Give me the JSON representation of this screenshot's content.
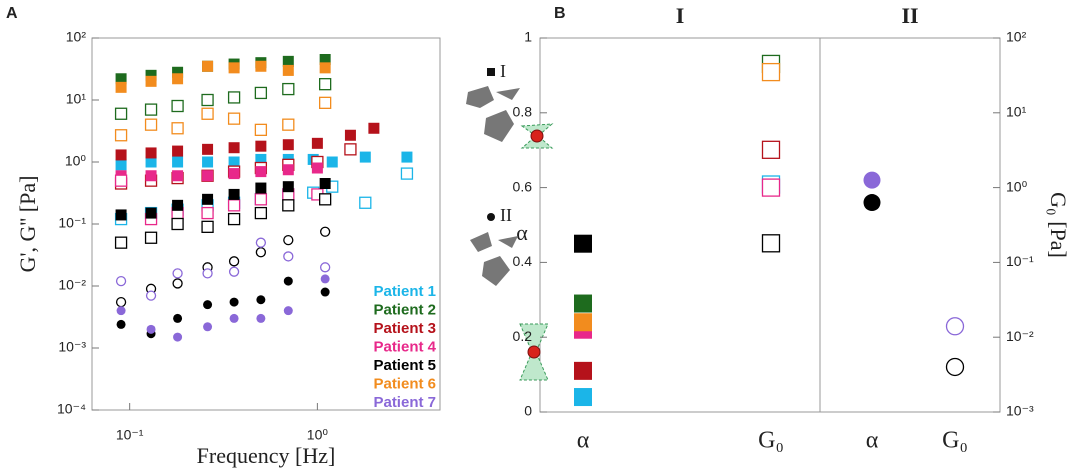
{
  "chart_data": [
    {
      "type": "scatter",
      "panel": "A",
      "xlabel": "Frequency [Hz]",
      "ylabel": "G', G'' [Pa]",
      "xlog": true,
      "ylog": true,
      "xlim": [
        0.063,
        4.5
      ],
      "ylim": [
        0.0001,
        100
      ],
      "xticks": [
        {
          "value": 0.1,
          "label": "10⁻¹"
        },
        {
          "value": 1,
          "label": "10⁰"
        }
      ],
      "yticks": [
        {
          "value": 0.0001,
          "label": "10⁻⁴"
        },
        {
          "value": 0.001,
          "label": "10⁻³"
        },
        {
          "value": 0.01,
          "label": "10⁻²"
        },
        {
          "value": 0.1,
          "label": "10⁻¹"
        },
        {
          "value": 1,
          "label": "10⁰"
        },
        {
          "value": 10,
          "label": "10¹"
        },
        {
          "value": 100,
          "label": "10²"
        }
      ],
      "legend": "lower right",
      "annotations": [
        "I",
        "II"
      ],
      "series": [
        {
          "name": "Patient 1",
          "color": "#1bb5e8",
          "groups": [
            {
              "marker": "square",
              "x": [
                0.09,
                0.13,
                0.18,
                0.26,
                0.36,
                0.5,
                0.7,
                0.95,
                1.2,
                1.8,
                3.0
              ],
              "storage": [
                0.9,
                1.0,
                1.0,
                1.0,
                1.0,
                1.1,
                1.1,
                1.1,
                1.0,
                1.2,
                1.2
              ],
              "loss": [
                0.12,
                0.15,
                0.17,
                0.2,
                0.22,
                0.25,
                0.3,
                0.32,
                0.4,
                0.22,
                0.65
              ]
            }
          ]
        },
        {
          "name": "Patient 2",
          "color": "#1e6b1e",
          "groups": [
            {
              "marker": "square",
              "x": [
                0.09,
                0.13,
                0.18,
                0.26,
                0.36,
                0.5,
                0.7,
                1.1
              ],
              "storage": [
                22,
                25,
                28,
                35,
                38,
                40,
                42,
                45
              ],
              "loss": [
                6,
                7,
                8,
                10,
                11,
                13,
                15,
                18
              ]
            }
          ]
        },
        {
          "name": "Patient 3",
          "color": "#b5121b",
          "groups": [
            {
              "marker": "square",
              "x": [
                0.09,
                0.13,
                0.18,
                0.26,
                0.36,
                0.5,
                0.7,
                1.0,
                1.5,
                2.0
              ],
              "storage": [
                1.3,
                1.4,
                1.5,
                1.6,
                1.7,
                1.8,
                1.9,
                2.0,
                2.7,
                3.5
              ],
              "loss": [
                0.45,
                0.5,
                0.55,
                0.6,
                0.7,
                0.8,
                0.9,
                1.0,
                1.6,
                null
              ]
            }
          ]
        },
        {
          "name": "Patient 4",
          "color": "#e8288a",
          "groups": [
            {
              "marker": "square",
              "x": [
                0.09,
                0.13,
                0.18,
                0.26,
                0.36,
                0.5,
                0.7,
                1.0
              ],
              "storage": [
                0.6,
                0.6,
                0.6,
                0.6,
                0.65,
                0.7,
                0.75,
                0.8
              ],
              "loss": [
                0.5,
                0.12,
                0.15,
                0.15,
                0.2,
                0.25,
                0.3,
                0.3
              ]
            }
          ]
        },
        {
          "name": "Patient 5",
          "color": "#000000",
          "groups": [
            {
              "marker": "square",
              "x": [
                0.09,
                0.13,
                0.18,
                0.26,
                0.36,
                0.5,
                0.7,
                1.1
              ],
              "storage": [
                0.14,
                0.15,
                0.2,
                0.25,
                0.3,
                0.38,
                0.4,
                0.45
              ],
              "loss": [
                0.05,
                0.06,
                0.1,
                0.09,
                0.12,
                0.15,
                0.2,
                0.25
              ]
            },
            {
              "marker": "circle",
              "x": [
                0.09,
                0.13,
                0.18,
                0.26,
                0.36,
                0.5,
                0.7,
                1.1
              ],
              "storage": [
                0.0024,
                0.0017,
                0.003,
                0.005,
                0.0055,
                0.006,
                0.012,
                0.008
              ],
              "loss": [
                0.0055,
                0.009,
                0.011,
                0.02,
                0.025,
                0.035,
                0.055,
                0.075
              ]
            }
          ]
        },
        {
          "name": "Patient 6",
          "color": "#f28c1e",
          "groups": [
            {
              "marker": "square",
              "x": [
                0.09,
                0.13,
                0.18,
                0.26,
                0.36,
                0.5,
                0.7,
                1.1
              ],
              "storage": [
                16,
                20,
                22,
                35,
                33,
                35,
                30,
                33
              ],
              "loss": [
                2.7,
                4,
                3.5,
                6,
                5,
                3.3,
                4,
                9
              ]
            }
          ]
        },
        {
          "name": "Patient 7",
          "color": "#8a68d8",
          "groups": [
            {
              "marker": "circle",
              "x": [
                0.09,
                0.13,
                0.18,
                0.26,
                0.36,
                0.5,
                0.7,
                1.1
              ],
              "storage": [
                0.004,
                0.002,
                0.0015,
                0.0022,
                0.003,
                0.003,
                0.004,
                0.013
              ],
              "loss": [
                0.012,
                0.007,
                0.016,
                0.016,
                0.017,
                0.05,
                0.03,
                0.02
              ]
            }
          ]
        }
      ]
    },
    {
      "type": "dot",
      "panel": "B",
      "ylabel": "α",
      "y2label": "G₀ [Pa]",
      "groups": [
        "I",
        "II"
      ],
      "group_markers": [
        "square",
        "circle"
      ],
      "categories": [
        "α",
        "G₀",
        "α",
        "G₀"
      ],
      "ylim": [
        0,
        1
      ],
      "yticks": [
        0,
        0.2,
        0.4,
        0.6,
        0.8,
        1
      ],
      "y2log": true,
      "y2lim": [
        0.001,
        100
      ],
      "y2ticks": [
        {
          "value": 0.001,
          "label": "10⁻³"
        },
        {
          "value": 0.01,
          "label": "10⁻²"
        },
        {
          "value": 0.1,
          "label": "10⁻¹"
        },
        {
          "value": 1,
          "label": "10⁰"
        },
        {
          "value": 10,
          "label": "10¹"
        },
        {
          "value": 100,
          "label": "10²"
        }
      ],
      "series": [
        {
          "color": "#1bb5e8",
          "axis": "y",
          "filled": true,
          "values": [
            0.04,
            null,
            null,
            null
          ]
        },
        {
          "color": "#b5121b",
          "axis": "y",
          "filled": true,
          "values": [
            0.11,
            null,
            null,
            null
          ]
        },
        {
          "color": "#e8288a",
          "axis": "y",
          "filled": true,
          "values": [
            0.22,
            null,
            null,
            null
          ]
        },
        {
          "color": "#f28c1e",
          "axis": "y",
          "filled": true,
          "values": [
            0.24,
            null,
            null,
            null
          ]
        },
        {
          "color": "#1e6b1e",
          "axis": "y",
          "filled": true,
          "values": [
            0.29,
            null,
            null,
            null
          ]
        },
        {
          "color": "#000000",
          "axis": "y",
          "filled": true,
          "values": [
            0.45,
            null,
            0.56,
            null
          ]
        },
        {
          "color": "#8a68d8",
          "axis": "y",
          "filled": true,
          "values": [
            null,
            null,
            0.62,
            null
          ]
        },
        {
          "color": "#1e6b1e",
          "axis": "y2",
          "filled": false,
          "values": [
            null,
            45,
            null,
            null
          ]
        },
        {
          "color": "#f28c1e",
          "axis": "y2",
          "filled": false,
          "values": [
            null,
            35,
            null,
            null
          ]
        },
        {
          "color": "#b5121b",
          "axis": "y2",
          "filled": false,
          "values": [
            null,
            3.2,
            null,
            null
          ]
        },
        {
          "color": "#1bb5e8",
          "axis": "y2",
          "filled": false,
          "values": [
            null,
            1.1,
            null,
            null
          ]
        },
        {
          "color": "#e8288a",
          "axis": "y2",
          "filled": false,
          "values": [
            null,
            1.0,
            null,
            null
          ]
        },
        {
          "color": "#000000",
          "axis": "y2",
          "filled": false,
          "values": [
            null,
            0.18,
            null,
            0.004
          ]
        },
        {
          "color": "#8a68d8",
          "axis": "y2",
          "filled": false,
          "values": [
            null,
            null,
            null,
            0.014
          ]
        }
      ]
    }
  ]
}
